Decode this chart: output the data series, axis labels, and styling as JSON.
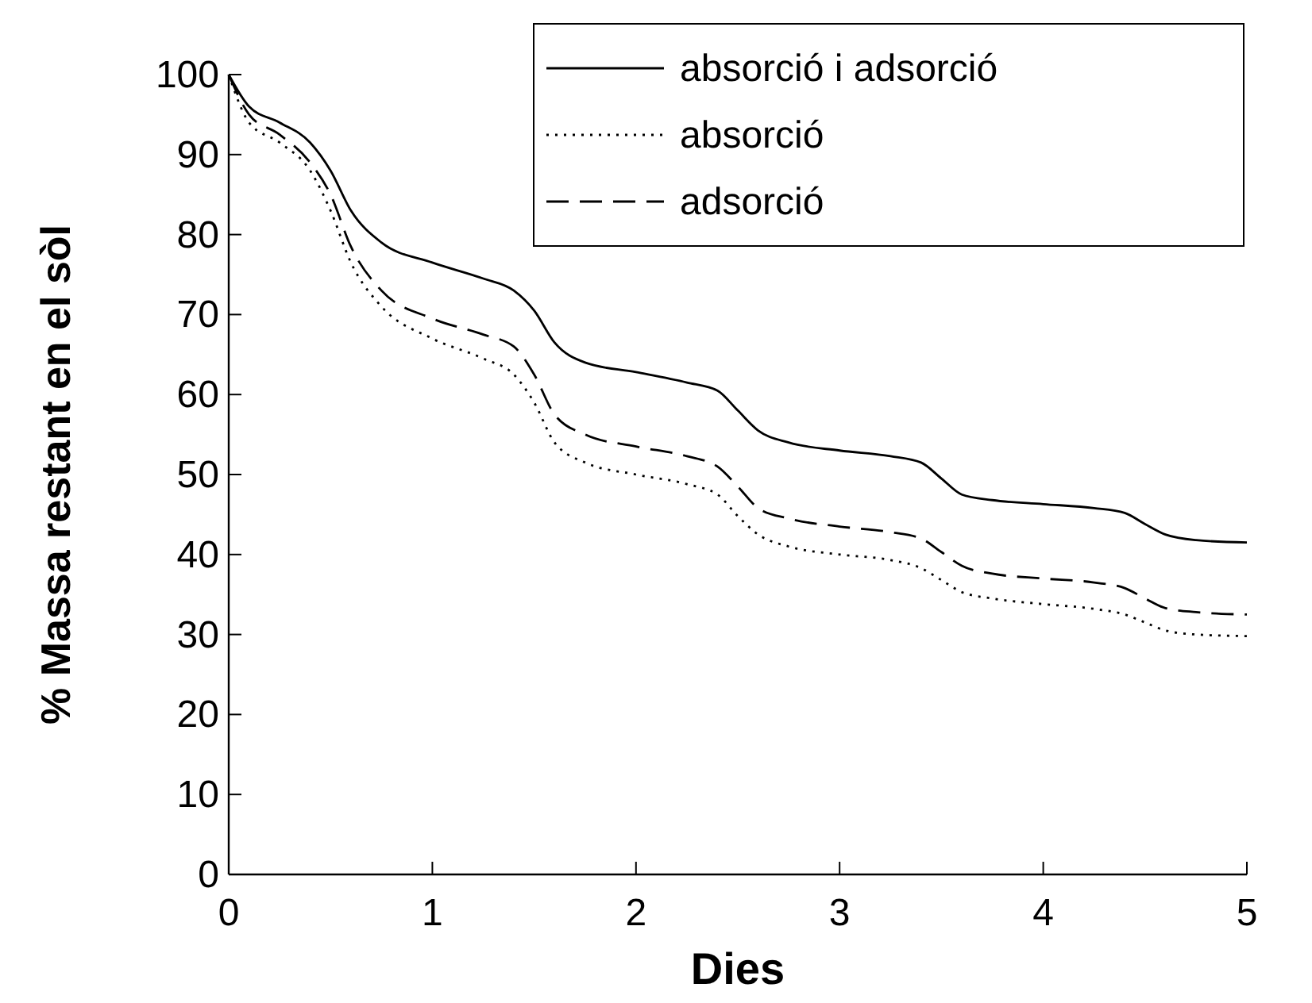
{
  "chart_data": {
    "type": "line",
    "xlabel": "Dies",
    "ylabel": "% Massa restant en el sòl",
    "xlim": [
      0,
      5
    ],
    "ylim": [
      0,
      100
    ],
    "xticks": [
      0,
      1,
      2,
      3,
      4,
      5
    ],
    "yticks": [
      0,
      10,
      20,
      30,
      40,
      50,
      60,
      70,
      80,
      90,
      100
    ],
    "grid": false,
    "legend": "top right",
    "x": [
      0,
      0.1,
      0.25,
      0.4,
      0.5,
      0.6,
      0.75,
      1,
      1.25,
      1.4,
      1.5,
      1.6,
      1.75,
      2,
      2.25,
      2.4,
      2.5,
      2.6,
      2.75,
      3,
      3.25,
      3.4,
      3.5,
      3.6,
      3.75,
      4,
      4.25,
      4.4,
      4.5,
      4.6,
      4.75,
      5
    ],
    "series": [
      {
        "name": "absorció i adsorció",
        "color": "#000000",
        "line_style": "solid",
        "values": [
          100,
          96,
          94,
          91.5,
          88,
          83,
          79,
          76.5,
          74.5,
          73,
          70.5,
          66.5,
          64,
          62.8,
          61.5,
          60.5,
          58,
          55.5,
          54,
          53,
          52.3,
          51.5,
          49.5,
          47.5,
          46.8,
          46.3,
          45.8,
          45.2,
          43.8,
          42.5,
          41.8,
          41.5
        ]
      },
      {
        "name": "absorció",
        "color": "#000000",
        "line_style": "dotted",
        "values": [
          100,
          94,
          91.5,
          88,
          83,
          76.5,
          71,
          67,
          64.5,
          62.5,
          59,
          54,
          51.5,
          50,
          48.8,
          47.5,
          44.8,
          42.5,
          41,
          40,
          39.3,
          38.3,
          36.8,
          35.3,
          34.5,
          33.8,
          33.2,
          32.5,
          31.5,
          30.5,
          30,
          29.8
        ]
      },
      {
        "name": "adsorció",
        "color": "#000000",
        "line_style": "dashed",
        "values": [
          100,
          95,
          92.5,
          89,
          85,
          78.5,
          73,
          69.5,
          67.5,
          66,
          62.5,
          57.5,
          55,
          53.5,
          52.3,
          51,
          48.5,
          45.8,
          44.5,
          43.5,
          42.8,
          42,
          40.3,
          38.6,
          37.6,
          37,
          36.5,
          35.8,
          34.5,
          33.3,
          32.8,
          32.5
        ]
      }
    ]
  }
}
